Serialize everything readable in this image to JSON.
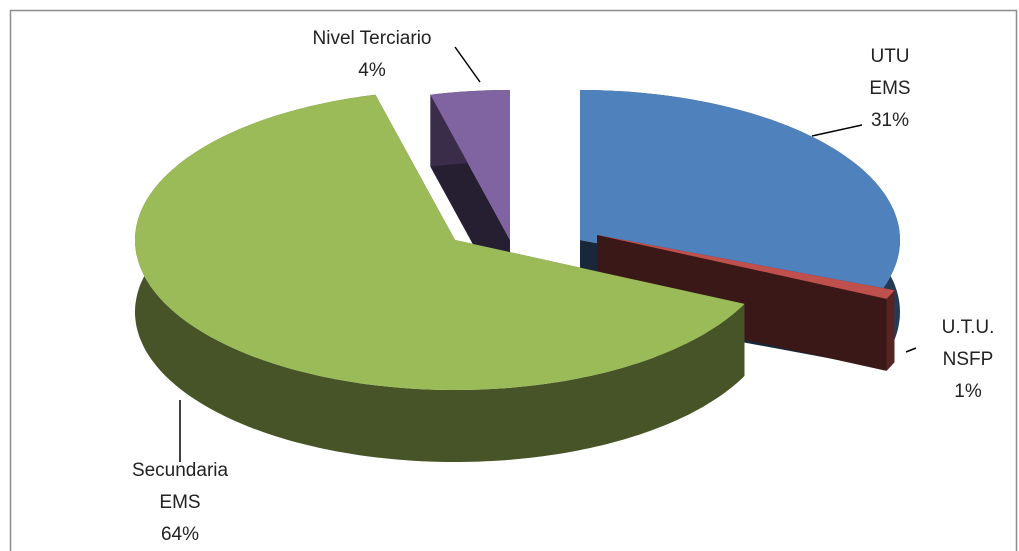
{
  "chart_data": {
    "type": "pie3d",
    "categories": [
      "UTU\nEMS",
      "U.T.U.\nNSFP",
      "Secundaria\nEMS",
      "Nivel Terciario"
    ],
    "values": [
      31,
      1,
      64,
      4
    ],
    "value_labels": [
      "31%",
      "1%",
      "64%",
      "4%"
    ],
    "colors": [
      "#4f81bd",
      "#c0504d",
      "#9bbb59",
      "#8064a2"
    ]
  }
}
